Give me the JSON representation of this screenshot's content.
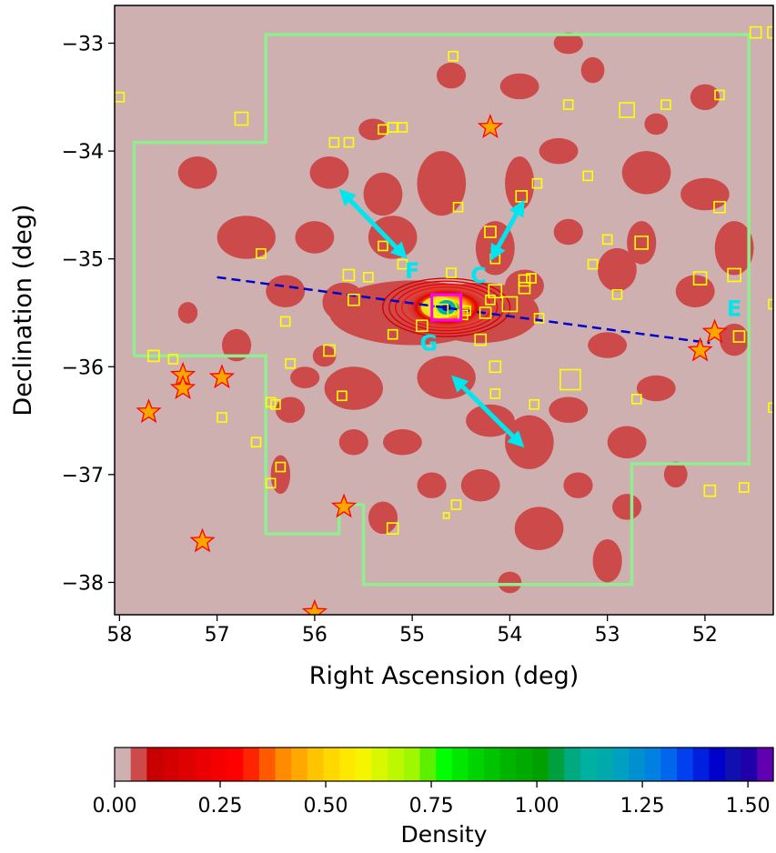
{
  "chart_data": {
    "type": "contour",
    "xlabel": "Right Ascension (deg)",
    "ylabel": "Declination (deg)",
    "xlim": [
      58.05,
      51.3
    ],
    "ylim": [
      -38.3,
      -32.65
    ],
    "xticks": [
      58,
      57,
      56,
      55,
      54,
      53,
      52
    ],
    "yticks": [
      -38,
      -37,
      -36,
      -35,
      -34,
      -33
    ],
    "xtick_labels": [
      "58",
      "57",
      "56",
      "55",
      "54",
      "53",
      "52"
    ],
    "ytick_labels": [
      "−38",
      "−37",
      "−36",
      "−35",
      "−34",
      "−33"
    ],
    "background_color": "#cfb0b0",
    "blob_color": "#cd4a4a",
    "footprint": {
      "color": "#90ee90",
      "vertices": [
        [
          57.85,
          -35.9
        ],
        [
          57.85,
          -33.92
        ],
        [
          56.5,
          -33.92
        ],
        [
          56.5,
          -32.92
        ],
        [
          51.55,
          -32.92
        ],
        [
          51.55,
          -36.9
        ],
        [
          52.75,
          -36.9
        ],
        [
          52.75,
          -38.02
        ],
        [
          55.5,
          -38.02
        ],
        [
          55.5,
          -37.28
        ],
        [
          55.75,
          -37.28
        ],
        [
          55.75,
          -37.55
        ],
        [
          56.5,
          -37.55
        ],
        [
          56.5,
          -35.9
        ]
      ]
    },
    "core": {
      "center": [
        54.65,
        -35.45
      ],
      "peak_density": 1.55
    },
    "blobs": [
      [
        55.0,
        -35.5,
        0.85,
        0.3
      ],
      [
        54.3,
        -35.5,
        0.6,
        0.28
      ],
      [
        55.7,
        -35.4,
        0.22,
        0.18
      ],
      [
        51.7,
        -35.75,
        0.15,
        0.15
      ],
      [
        52.65,
        -34.85,
        0.15,
        0.2
      ],
      [
        53.85,
        -35.25,
        0.2,
        0.15
      ],
      [
        54.15,
        -34.9,
        0.2,
        0.25
      ],
      [
        55.2,
        -34.8,
        0.25,
        0.2
      ],
      [
        55.85,
        -34.2,
        0.2,
        0.15
      ],
      [
        55.3,
        -34.4,
        0.2,
        0.2
      ],
      [
        54.7,
        -34.3,
        0.25,
        0.3
      ],
      [
        53.9,
        -34.3,
        0.15,
        0.25
      ],
      [
        53.5,
        -34.0,
        0.2,
        0.12
      ],
      [
        52.6,
        -34.2,
        0.25,
        0.2
      ],
      [
        52.0,
        -34.4,
        0.25,
        0.15
      ],
      [
        51.7,
        -34.9,
        0.2,
        0.25
      ],
      [
        52.1,
        -35.3,
        0.2,
        0.15
      ],
      [
        52.9,
        -35.1,
        0.2,
        0.2
      ],
      [
        53.4,
        -34.75,
        0.15,
        0.12
      ],
      [
        56.7,
        -34.8,
        0.3,
        0.2
      ],
      [
        57.2,
        -34.2,
        0.2,
        0.15
      ],
      [
        56.0,
        -34.8,
        0.2,
        0.15
      ],
      [
        56.3,
        -35.3,
        0.2,
        0.15
      ],
      [
        56.8,
        -35.8,
        0.15,
        0.15
      ],
      [
        55.6,
        -36.2,
        0.3,
        0.2
      ],
      [
        54.65,
        -36.1,
        0.3,
        0.2
      ],
      [
        54.2,
        -36.5,
        0.25,
        0.15
      ],
      [
        53.8,
        -36.7,
        0.25,
        0.25
      ],
      [
        54.3,
        -37.1,
        0.2,
        0.15
      ],
      [
        53.7,
        -37.5,
        0.25,
        0.2
      ],
      [
        53.4,
        -36.4,
        0.2,
        0.12
      ],
      [
        52.8,
        -36.7,
        0.2,
        0.15
      ],
      [
        55.1,
        -36.7,
        0.2,
        0.12
      ],
      [
        55.6,
        -36.7,
        0.15,
        0.12
      ],
      [
        54.8,
        -37.1,
        0.15,
        0.12
      ],
      [
        55.3,
        -37.4,
        0.15,
        0.15
      ],
      [
        56.35,
        -37.0,
        0.1,
        0.18
      ],
      [
        53.0,
        -37.8,
        0.15,
        0.2
      ],
      [
        52.8,
        -37.3,
        0.15,
        0.12
      ],
      [
        56.1,
        -36.1,
        0.15,
        0.1
      ],
      [
        53.4,
        -33.0,
        0.15,
        0.1
      ],
      [
        54.6,
        -33.3,
        0.15,
        0.12
      ],
      [
        53.9,
        -33.4,
        0.2,
        0.12
      ],
      [
        52.0,
        -33.5,
        0.15,
        0.12
      ],
      [
        55.4,
        -33.8,
        0.15,
        0.1
      ],
      [
        56.25,
        -36.4,
        0.15,
        0.12
      ],
      [
        53.0,
        -35.8,
        0.2,
        0.12
      ],
      [
        52.5,
        -36.2,
        0.2,
        0.12
      ],
      [
        53.15,
        -33.25,
        0.12,
        0.12
      ],
      [
        52.5,
        -33.75,
        0.12,
        0.1
      ],
      [
        57.3,
        -35.5,
        0.1,
        0.1
      ],
      [
        55.9,
        -35.9,
        0.12,
        0.1
      ],
      [
        52.3,
        -37.0,
        0.12,
        0.12
      ],
      [
        53.3,
        -37.1,
        0.15,
        0.12
      ],
      [
        54.0,
        -38.0,
        0.12,
        0.1
      ]
    ],
    "colorbar": {
      "label": "Density",
      "min": 0.0,
      "max": 1.56,
      "tick_values": [
        0.0,
        0.25,
        0.5,
        0.75,
        1.0,
        1.25,
        1.5
      ],
      "tick_labels": [
        "0.00",
        "0.25",
        "0.50",
        "0.75",
        "1.00",
        "1.25",
        "1.50"
      ],
      "colors": [
        "#cfb0b0",
        "#cd4a4a",
        "#c90000",
        "#d40000",
        "#df0000",
        "#ea0000",
        "#f50000",
        "#ff0000",
        "#ff2400",
        "#ff5a00",
        "#ff8c00",
        "#ffa800",
        "#ffc400",
        "#ffd800",
        "#ffe800",
        "#f5f500",
        "#d8f800",
        "#bef800",
        "#9ff800",
        "#5cf000",
        "#00ff00",
        "#00e800",
        "#00d400",
        "#00c400",
        "#00b400",
        "#00aa00",
        "#00a000",
        "#00a040",
        "#00aa80",
        "#00b0a0",
        "#00aaaa",
        "#00a0c0",
        "#0090d0",
        "#0080e0",
        "#0066ee",
        "#0040ee",
        "#0020e0",
        "#0000cd",
        "#1010b0",
        "#2000a8",
        "#6000b0"
      ]
    },
    "star_markers": {
      "face_color": "#ffa500",
      "edge_color": "#ff0000",
      "points": [
        [
          54.2,
          -33.78
        ],
        [
          57.35,
          -36.08
        ],
        [
          57.35,
          -36.2
        ],
        [
          56.95,
          -36.1
        ],
        [
          57.7,
          -36.42
        ],
        [
          57.15,
          -37.62
        ],
        [
          55.7,
          -37.3
        ],
        [
          56.0,
          -38.28
        ],
        [
          52.05,
          -35.85
        ],
        [
          51.9,
          -35.68
        ]
      ]
    },
    "square_markers": {
      "edge_color": "#ffff00",
      "points": [
        [
          58.0,
          -33.5,
          10
        ],
        [
          56.75,
          -33.7,
          14
        ],
        [
          55.8,
          -33.92,
          10
        ],
        [
          55.65,
          -33.92,
          10
        ],
        [
          55.3,
          -33.8,
          10
        ],
        [
          55.2,
          -33.78,
          10
        ],
        [
          55.1,
          -33.78,
          10
        ],
        [
          54.58,
          -33.12,
          10
        ],
        [
          53.4,
          -33.57,
          10
        ],
        [
          52.8,
          -33.62,
          16
        ],
        [
          52.4,
          -33.57,
          10
        ],
        [
          51.85,
          -33.48,
          10
        ],
        [
          51.48,
          -32.9,
          12
        ],
        [
          51.3,
          -32.9,
          12
        ],
        [
          54.53,
          -34.52,
          10
        ],
        [
          53.88,
          -34.42,
          12
        ],
        [
          53.72,
          -34.3,
          10
        ],
        [
          53.2,
          -34.23,
          10
        ],
        [
          51.85,
          -34.52,
          12
        ],
        [
          54.2,
          -34.75,
          12
        ],
        [
          55.3,
          -34.88,
          10
        ],
        [
          56.55,
          -34.95,
          10
        ],
        [
          53.0,
          -34.82,
          10
        ],
        [
          52.65,
          -34.85,
          14
        ],
        [
          53.15,
          -35.05,
          10
        ],
        [
          54.15,
          -35.0,
          10
        ],
        [
          55.1,
          -35.05,
          10
        ],
        [
          55.65,
          -35.15,
          12
        ],
        [
          55.45,
          -35.17,
          10
        ],
        [
          54.6,
          -35.13,
          10
        ],
        [
          53.85,
          -35.2,
          12
        ],
        [
          53.78,
          -35.18,
          10
        ],
        [
          53.85,
          -35.27,
          12
        ],
        [
          54.15,
          -35.3,
          14
        ],
        [
          52.05,
          -35.18,
          14
        ],
        [
          52.9,
          -35.33,
          10
        ],
        [
          51.7,
          -35.15,
          14
        ],
        [
          51.3,
          -35.42,
          10
        ],
        [
          54.7,
          -35.48,
          14
        ],
        [
          54.45,
          -35.48,
          10
        ],
        [
          54.25,
          -35.5,
          12
        ],
        [
          54.2,
          -35.38,
          10
        ],
        [
          54.0,
          -35.42,
          16
        ],
        [
          55.6,
          -35.38,
          12
        ],
        [
          53.7,
          -35.55,
          10
        ],
        [
          56.3,
          -35.58,
          10
        ],
        [
          54.9,
          -35.62,
          12
        ],
        [
          55.2,
          -35.7,
          10
        ],
        [
          54.3,
          -35.75,
          12
        ],
        [
          51.65,
          -35.72,
          12
        ],
        [
          57.65,
          -35.9,
          12
        ],
        [
          57.45,
          -35.93,
          10
        ],
        [
          55.85,
          -35.85,
          12
        ],
        [
          56.25,
          -35.97,
          10
        ],
        [
          54.15,
          -36.0,
          12
        ],
        [
          53.38,
          -36.12,
          22
        ],
        [
          54.15,
          -36.25,
          10
        ],
        [
          55.72,
          -36.27,
          10
        ],
        [
          53.75,
          -36.35,
          10
        ],
        [
          52.7,
          -36.3,
          10
        ],
        [
          56.4,
          -36.35,
          10
        ],
        [
          56.45,
          -36.33,
          10
        ],
        [
          56.95,
          -36.47,
          10
        ],
        [
          56.6,
          -36.7,
          10
        ],
        [
          51.3,
          -36.38,
          10
        ],
        [
          51.25,
          -36.35,
          10
        ],
        [
          56.35,
          -36.93,
          10
        ],
        [
          56.45,
          -37.08,
          10
        ],
        [
          51.25,
          -36.92,
          10
        ],
        [
          51.2,
          -36.98,
          10
        ],
        [
          51.95,
          -37.15,
          12
        ],
        [
          51.6,
          -37.12,
          10
        ],
        [
          54.55,
          -37.28,
          10
        ],
        [
          55.2,
          -37.5,
          12
        ],
        [
          54.65,
          -37.38,
          6
        ],
        [
          54.48,
          -35.52,
          10
        ]
      ]
    },
    "magenta_square": {
      "center": [
        54.65,
        -35.45
      ],
      "color": "#ff00ff"
    },
    "dashed_line": {
      "color": "#0000cd",
      "from": [
        57.0,
        -35.17
      ],
      "to": [
        51.95,
        -35.78
      ]
    },
    "arrows": [
      {
        "color": "#00e5ee",
        "from": [
          55.75,
          -34.35
        ],
        "to": [
          55.05,
          -35.0
        ]
      },
      {
        "color": "#00e5ee",
        "from": [
          54.2,
          -35.02
        ],
        "to": [
          53.85,
          -34.45
        ]
      },
      {
        "color": "#00e5ee",
        "from": [
          54.6,
          -36.08
        ],
        "to": [
          53.85,
          -36.75
        ]
      }
    ],
    "annotations": [
      {
        "text": "F",
        "x": 55.0,
        "y": -35.18
      },
      {
        "text": "C",
        "x": 54.32,
        "y": -35.22
      },
      {
        "text": "E",
        "x": 51.7,
        "y": -35.53
      },
      {
        "text": "G",
        "x": 54.83,
        "y": -35.85
      }
    ]
  }
}
